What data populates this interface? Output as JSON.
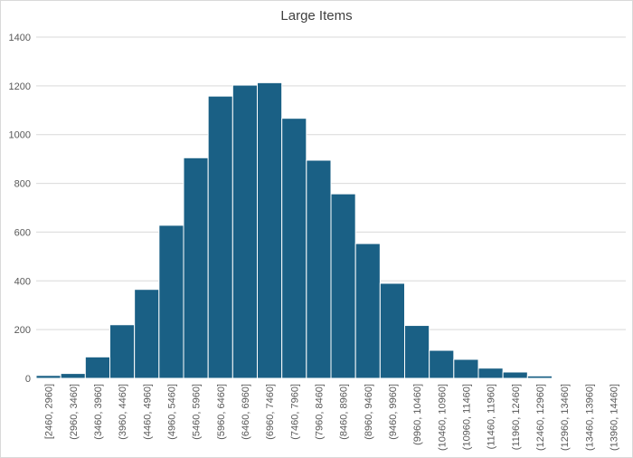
{
  "chart_data": {
    "type": "bar",
    "title": "Large Items",
    "xlabel": "",
    "ylabel": "",
    "categories": [
      "[2460, 2960]",
      "(2960, 3460]",
      "(3460, 3960]",
      "(3960, 4460]",
      "(4460, 4960]",
      "(4960, 5460]",
      "(5460, 5960]",
      "(5960, 6460]",
      "(6460, 6960]",
      "(6960, 7460]",
      "(7460, 7960]",
      "(7960, 8460]",
      "(8460, 8960]",
      "(8960, 9460]",
      "(9460, 9960]",
      "(9960, 10460]",
      "(10460, 10960]",
      "(10960, 11460]",
      "(11460, 11960]",
      "(11960, 12460]",
      "(12460, 12960]",
      "(12960, 13460]",
      "(13460, 13960]",
      "(13960, 14460]"
    ],
    "values": [
      12,
      20,
      88,
      220,
      365,
      628,
      905,
      1158,
      1203,
      1213,
      1067,
      895,
      757,
      553,
      390,
      217,
      115,
      78,
      42,
      26,
      10,
      2,
      1,
      1
    ],
    "ylim": [
      0,
      1400
    ],
    "yticks": [
      "0",
      "200",
      "400",
      "600",
      "800",
      "1000",
      "1200",
      "1400"
    ],
    "grid": true,
    "bar_color": "#1a6085"
  }
}
